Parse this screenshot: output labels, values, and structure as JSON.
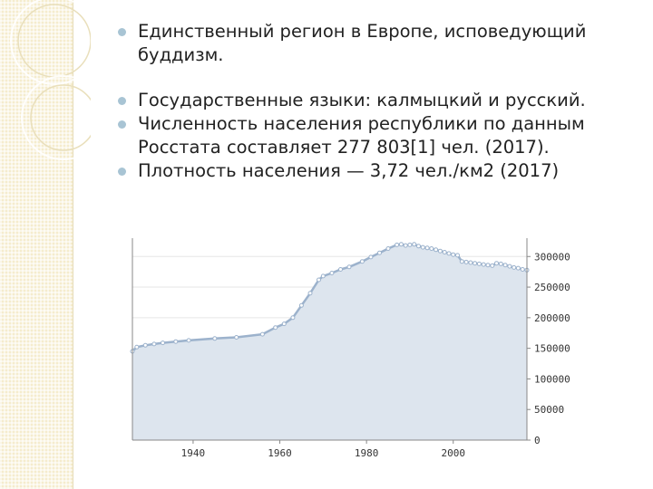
{
  "slide": {
    "bullets": [
      "Единственный регион в Европе, исповедующий буддизм.",
      "Государственные языки: калмыцкий и русский.",
      "Численность населения республики по данным Росстата составляет 277 803[1] чел. (2017).",
      "Плотность населения — 3,72 чел./км2 (2017)"
    ]
  },
  "colors": {
    "area_fill": "#dde5ee",
    "line": "#9cb2cc",
    "bullet": "#a8c4d4",
    "grid": "#e6e6e6",
    "axis": "#888888",
    "decor": "#f5eccd"
  },
  "chart_data": {
    "type": "area",
    "title": "",
    "xlabel": "",
    "ylabel": "",
    "xlim": [
      1926,
      2017
    ],
    "ylim": [
      0,
      330000
    ],
    "x_ticks": [
      1940,
      1960,
      1980,
      2000
    ],
    "y_ticks": [
      0,
      50000,
      100000,
      150000,
      200000,
      250000,
      300000
    ],
    "y_axis_position": "right",
    "grid": "horizontal",
    "legend": "none",
    "series": [
      {
        "x": [
          1926,
          1927,
          1929,
          1931,
          1933,
          1936,
          1939,
          1945,
          1950,
          1956,
          1959,
          1961,
          1963,
          1965,
          1967,
          1969,
          1970,
          1972,
          1974,
          1976,
          1979,
          1981,
          1983,
          1985,
          1987,
          1988,
          1989,
          1990,
          1991,
          1992,
          1993,
          1994,
          1995,
          1996,
          1997,
          1998,
          1999,
          2000,
          2001,
          2002,
          2003,
          2004,
          2005,
          2006,
          2007,
          2008,
          2009,
          2010,
          2011,
          2012,
          2013,
          2014,
          2015,
          2016,
          2017
        ],
        "values": [
          145000,
          152000,
          155000,
          157000,
          159000,
          161000,
          163000,
          166000,
          168000,
          173000,
          184000,
          190000,
          200000,
          220000,
          240000,
          262000,
          268000,
          273000,
          279000,
          283000,
          292000,
          299000,
          306000,
          313000,
          319000,
          320000,
          318000,
          319000,
          320000,
          317000,
          315000,
          314000,
          313000,
          311000,
          309000,
          307000,
          305000,
          303000,
          302000,
          292000,
          291000,
          290000,
          289000,
          288000,
          287000,
          286000,
          285000,
          289000,
          288000,
          286000,
          284000,
          282000,
          281000,
          279000,
          277803
        ]
      }
    ]
  }
}
